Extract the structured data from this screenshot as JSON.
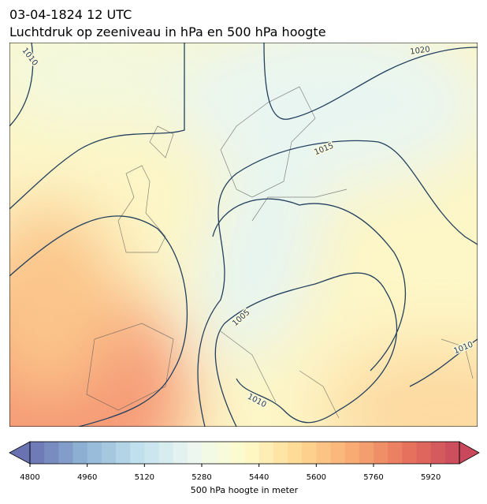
{
  "title": "03-04-1824 12 UTC",
  "subtitle": "Luchtdruk op zeeniveau in hPa en 500 hPa hoogte",
  "map": {
    "isobar_labels": [
      1010,
      1020,
      1015,
      1005,
      1010,
      1010
    ]
  },
  "colorbar": {
    "label": "500 hPa hoogte in meter",
    "lim": [
      4800,
      6000
    ],
    "step": 40,
    "ticks": [
      4800,
      4960,
      5120,
      5280,
      5440,
      5600,
      5760,
      5920
    ],
    "colors": [
      "#6a72b2",
      "#8eb3d4",
      "#bfe0ec",
      "#ecf7f2",
      "#fefccb",
      "#fed993",
      "#f8ac74",
      "#e8755e",
      "#c9485c"
    ]
  }
}
